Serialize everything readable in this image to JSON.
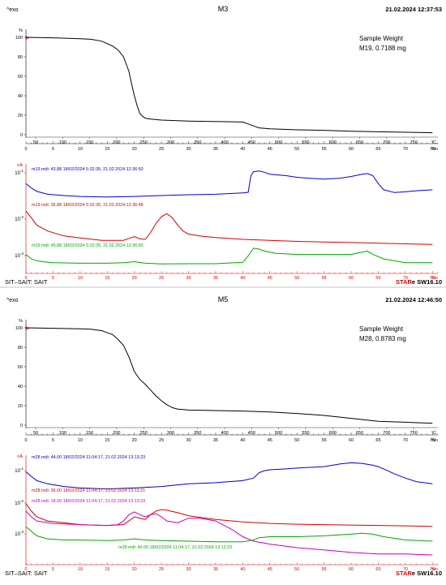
{
  "panels": [
    {
      "exo": "^exo",
      "title": "M3",
      "datetime": "21.02.2024 12:37:53",
      "footer_left": "SIT–SAIT: SAIT",
      "footer_right_brand": "STAR",
      "footer_right_version": "e SW16.10",
      "tga": {
        "y_unit": "%",
        "y_ticks": [
          "100",
          "80",
          "60",
          "40",
          "20",
          "0"
        ],
        "temp_ticks": [
          "50",
          "100",
          "150",
          "200",
          "250",
          "300",
          "350",
          "400",
          "450",
          "500",
          "550",
          "600",
          "650",
          "700",
          "750"
        ],
        "temp_unit": "°C",
        "time_ticks": [
          "0",
          "5",
          "10",
          "15",
          "20",
          "25",
          "30",
          "35",
          "40",
          "45",
          "50",
          "55",
          "60",
          "65",
          "70",
          "75"
        ],
        "time_unit": "min",
        "sample_label": "Sample Weight",
        "sample_value": "M19, 0.7188 mg"
      },
      "ms": {
        "y_unit": "nA",
        "y_ticks": [
          "10^-1",
          "10^-2",
          "10^-3"
        ],
        "time_ticks": [
          "0",
          "5",
          "10",
          "15",
          "20",
          "25",
          "30",
          "35",
          "40",
          "45",
          "50",
          "55",
          "60",
          "65",
          "70",
          "75"
        ],
        "time_unit": "min",
        "labels": [
          {
            "text": "m19.mdi: 43.88 18/02/2024 5:32:35, 21.02.2024 12:36:50",
            "color": "#0000cc"
          },
          {
            "text": "m19.mdi: 35.88 18/02/2024 5:32:35, 21.02.2024 12:36:48",
            "color": "#d40000"
          },
          {
            "text": "m19.mdi: 45.88 18/02/2024 5:32:35, 21.02.2024 12:36:50",
            "color": "#00a800"
          }
        ]
      }
    },
    {
      "exo": "^exo",
      "title": "M5",
      "datetime": "21.02.2024 12:46:50",
      "footer_left": "SIT–SAIT: SAIT",
      "footer_right_brand": "STAR",
      "footer_right_version": "e SW16.10",
      "tga": {
        "y_unit": "%",
        "y_ticks": [
          "100",
          "80",
          "60",
          "40",
          "20",
          "0"
        ],
        "temp_ticks": [
          "50",
          "100",
          "150",
          "200",
          "250",
          "300",
          "350",
          "400",
          "450",
          "500",
          "550",
          "600",
          "650",
          "700",
          "750"
        ],
        "temp_unit": "°C",
        "time_ticks": [
          "0",
          "5",
          "10",
          "15",
          "20",
          "25",
          "30",
          "35",
          "40",
          "45",
          "50",
          "55",
          "60",
          "65",
          "70",
          "75"
        ],
        "time_unit": "min",
        "sample_label": "Sample Weight",
        "sample_value": "M28, 0.8783 mg"
      },
      "ms": {
        "y_unit": "nA",
        "y_ticks": [
          "10^-1",
          "10^-2",
          "10^-3"
        ],
        "time_ticks": [
          "0",
          "5",
          "10",
          "15",
          "20",
          "25",
          "30",
          "35",
          "40",
          "45",
          "50",
          "55",
          "60",
          "65",
          "70",
          "75"
        ],
        "time_unit": "min",
        "labels": [
          {
            "text": "m28.mdi: 44.00 18/02/2024 11:04:17, 21.02.2024 13:13:23",
            "color": "#0000cc"
          },
          {
            "text": "m28.mdi: 36.00 18/02/2024 11:04:17, 21.02.2024 13:13:21",
            "color": "#d40000"
          },
          {
            "text": "m28.mdi: 18.00 18/02/2024 11:04:17, 21.02.2024 13:13:23",
            "color": "#c000c0"
          },
          {
            "text": "m28.mdi: 46.00 18/02/2024 11:04:17, 21.02.2024 13:13:23",
            "color": "#00a800"
          }
        ]
      }
    }
  ],
  "chart_data": [
    {
      "type": "line",
      "title": "M3",
      "xlabel": "min",
      "ylabel": "%",
      "xlim": [
        0,
        76
      ],
      "ylim": [
        0,
        100
      ],
      "series": [
        {
          "color": "#000000",
          "x": [
            0,
            5,
            10,
            12,
            14,
            16,
            17,
            18,
            19,
            19.5,
            20,
            20.5,
            21,
            21.5,
            22,
            23,
            25,
            30,
            35,
            40,
            41,
            42,
            43,
            45,
            50,
            55,
            60,
            65,
            70,
            75
          ],
          "y": [
            100,
            99.5,
            98.5,
            98,
            96,
            91,
            87,
            80,
            65,
            52,
            40,
            30,
            22,
            19,
            17,
            16,
            15,
            14,
            13.5,
            13,
            11,
            9,
            7,
            6,
            5,
            4.5,
            3.5,
            3,
            2.5,
            2
          ]
        }
      ]
    },
    {
      "type": "line",
      "xlabel": "min",
      "ylabel": "nA",
      "xlim": [
        0,
        76
      ],
      "y_scale": "log",
      "ylim": [
        0.0005,
        0.3
      ],
      "series": [
        {
          "color": "#0000cc",
          "x": [
            0,
            1,
            2,
            4,
            7,
            10,
            15,
            20,
            25,
            30,
            35,
            40,
            41,
            41.5,
            42,
            43,
            44,
            45,
            48,
            50,
            52,
            55,
            58,
            60,
            62,
            63,
            64,
            65,
            66,
            68,
            70,
            72,
            75
          ],
          "y": [
            0.12,
            0.09,
            0.072,
            0.06,
            0.055,
            0.052,
            0.05,
            0.052,
            0.055,
            0.058,
            0.06,
            0.065,
            0.068,
            0.2,
            0.26,
            0.27,
            0.25,
            0.22,
            0.2,
            0.18,
            0.17,
            0.16,
            0.17,
            0.19,
            0.22,
            0.23,
            0.2,
            0.12,
            0.08,
            0.067,
            0.07,
            0.075,
            0.08
          ]
        },
        {
          "color": "#d40000",
          "x": [
            0,
            1,
            2,
            4,
            7,
            10,
            14,
            18,
            19,
            20,
            21,
            22,
            23,
            24,
            25,
            26,
            27,
            28,
            29,
            30,
            32,
            35,
            40,
            45,
            50,
            55,
            60,
            65,
            70,
            75
          ],
          "y": [
            0.02,
            0.013,
            0.008,
            0.0055,
            0.004,
            0.0035,
            0.003,
            0.003,
            0.0034,
            0.0038,
            0.0033,
            0.0032,
            0.005,
            0.009,
            0.014,
            0.017,
            0.013,
            0.008,
            0.0055,
            0.0045,
            0.004,
            0.0036,
            0.0032,
            0.003,
            0.0028,
            0.0027,
            0.0026,
            0.0025,
            0.0024,
            0.0023
          ]
        },
        {
          "color": "#00a800",
          "x": [
            0,
            1,
            2,
            3,
            5,
            10,
            15,
            18,
            20,
            22,
            25,
            30,
            35,
            40,
            41,
            42,
            43,
            44,
            46,
            50,
            55,
            60,
            62,
            63,
            64,
            66,
            70,
            75
          ],
          "y": [
            0.0012,
            0.0009,
            0.0008,
            0.00075,
            0.0007,
            0.00068,
            0.00068,
            0.0007,
            0.00075,
            0.00068,
            0.00065,
            0.00066,
            0.00066,
            0.00072,
            0.0011,
            0.0018,
            0.0017,
            0.0015,
            0.0013,
            0.0012,
            0.0012,
            0.0012,
            0.0014,
            0.0015,
            0.0012,
            0.0009,
            0.0007,
            0.0007
          ]
        }
      ]
    },
    {
      "type": "line",
      "title": "M5",
      "xlabel": "min",
      "ylabel": "%",
      "xlim": [
        0,
        76
      ],
      "ylim": [
        0,
        100
      ],
      "series": [
        {
          "color": "#000000",
          "x": [
            0,
            5,
            10,
            12,
            14,
            16,
            17,
            18,
            19,
            20,
            21,
            22,
            23,
            24,
            25,
            26,
            27,
            28,
            29,
            30,
            35,
            40,
            45,
            50,
            55,
            60,
            65,
            70,
            75
          ],
          "y": [
            100,
            99.5,
            99,
            98.5,
            97,
            93,
            88,
            82,
            70,
            55,
            47,
            42,
            36,
            30,
            25,
            21,
            18,
            16.5,
            16,
            15.5,
            15,
            14.5,
            13.5,
            12,
            10,
            7,
            4,
            3,
            2
          ]
        }
      ]
    },
    {
      "type": "line",
      "xlabel": "min",
      "ylabel": "nA",
      "xlim": [
        0,
        76
      ],
      "y_scale": "log",
      "ylim": [
        0.0003,
        0.3
      ],
      "series": [
        {
          "color": "#0000cc",
          "x": [
            0,
            1,
            2,
            4,
            7,
            10,
            15,
            20,
            25,
            30,
            35,
            40,
            42,
            43,
            44,
            45,
            48,
            50,
            55,
            58,
            60,
            62,
            64,
            65,
            66,
            68,
            70,
            72,
            75
          ],
          "y": [
            0.14,
            0.1,
            0.075,
            0.06,
            0.05,
            0.045,
            0.042,
            0.045,
            0.05,
            0.06,
            0.065,
            0.075,
            0.09,
            0.13,
            0.15,
            0.16,
            0.17,
            0.18,
            0.2,
            0.24,
            0.26,
            0.25,
            0.22,
            0.2,
            0.17,
            0.12,
            0.09,
            0.07,
            0.06
          ]
        },
        {
          "color": "#d40000",
          "x": [
            0,
            1,
            2,
            4,
            7,
            10,
            15,
            18,
            19,
            20,
            21,
            22,
            23,
            24,
            25,
            26,
            28,
            30,
            35,
            40,
            45,
            50,
            55,
            60,
            65,
            70,
            75
          ],
          "y": [
            0.015,
            0.009,
            0.006,
            0.0045,
            0.004,
            0.0035,
            0.0033,
            0.0035,
            0.0045,
            0.006,
            0.0055,
            0.005,
            0.007,
            0.009,
            0.01,
            0.0095,
            0.008,
            0.0065,
            0.005,
            0.0042,
            0.0038,
            0.0036,
            0.0035,
            0.0034,
            0.0033,
            0.0032,
            0.0031
          ]
        },
        {
          "color": "#c000c0",
          "x": [
            0,
            1,
            2,
            5,
            10,
            15,
            17,
            18,
            19,
            20,
            21,
            22,
            23,
            24,
            25,
            26,
            28,
            30,
            32,
            35,
            38,
            40,
            42,
            45,
            50,
            55,
            60,
            65,
            70,
            75
          ],
          "y": [
            0.009,
            0.006,
            0.0045,
            0.0038,
            0.0035,
            0.0033,
            0.0035,
            0.0045,
            0.007,
            0.0085,
            0.007,
            0.006,
            0.007,
            0.0075,
            0.006,
            0.0045,
            0.004,
            0.0055,
            0.0055,
            0.0045,
            0.0025,
            0.0015,
            0.0011,
            0.0009,
            0.0007,
            0.0006,
            0.0005,
            0.00045,
            0.00045,
            0.00042
          ]
        },
        {
          "color": "#00a800",
          "x": [
            0,
            1,
            2,
            4,
            7,
            10,
            15,
            18,
            20,
            22,
            25,
            30,
            35,
            40,
            42,
            43,
            45,
            50,
            55,
            60,
            62,
            64,
            66,
            70,
            75
          ],
          "y": [
            0.003,
            0.0022,
            0.0016,
            0.0013,
            0.0012,
            0.0012,
            0.00115,
            0.0012,
            0.0013,
            0.0012,
            0.00115,
            0.0011,
            0.00105,
            0.00105,
            0.0012,
            0.0014,
            0.0015,
            0.0015,
            0.0016,
            0.0018,
            0.0019,
            0.0018,
            0.0015,
            0.0012,
            0.0011
          ]
        }
      ]
    }
  ]
}
